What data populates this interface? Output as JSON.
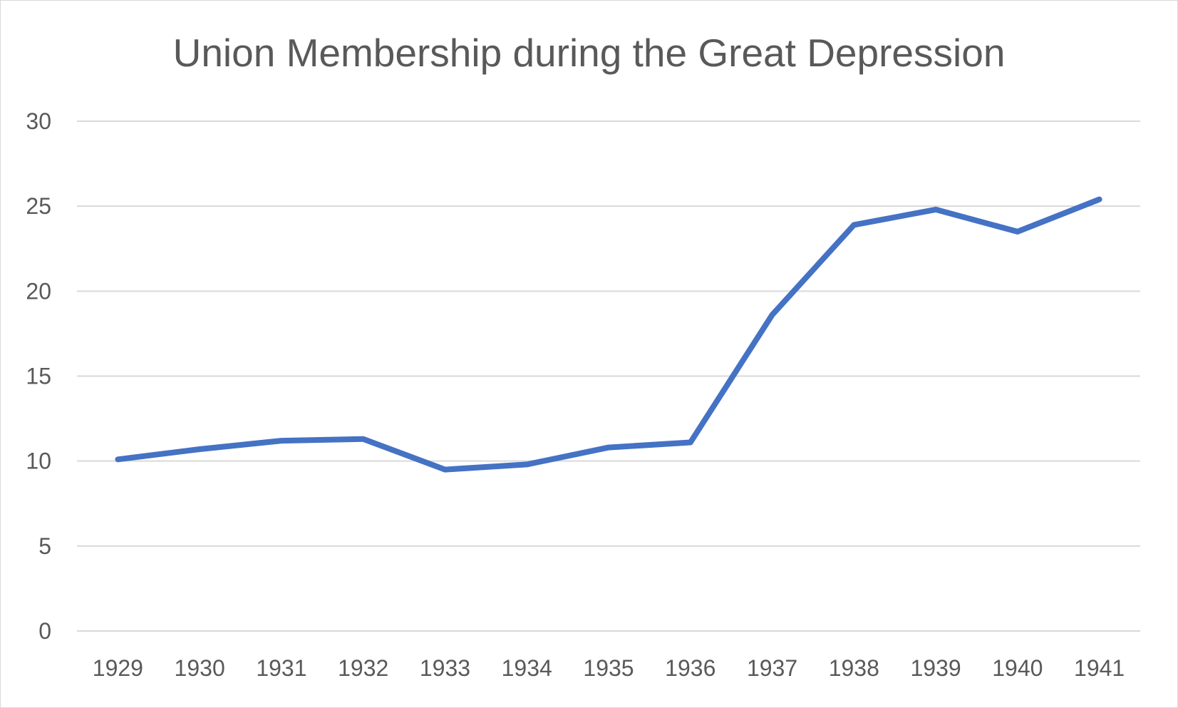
{
  "chart_data": {
    "type": "line",
    "title": "Union Membership during the Great Depression",
    "xlabel": "",
    "ylabel": "",
    "categories": [
      "1929",
      "1930",
      "1931",
      "1932",
      "1933",
      "1934",
      "1935",
      "1936",
      "1937",
      "1938",
      "1939",
      "1940",
      "1941"
    ],
    "series": [
      {
        "values": [
          10.1,
          10.7,
          11.2,
          11.3,
          9.5,
          9.8,
          10.8,
          11.1,
          18.6,
          23.9,
          24.8,
          23.5,
          25.4
        ],
        "color": "#4472c4"
      }
    ],
    "ylim": [
      0,
      30
    ],
    "yticks": [
      0,
      5,
      10,
      15,
      20,
      25,
      30
    ],
    "grid": true,
    "legend": "none"
  }
}
